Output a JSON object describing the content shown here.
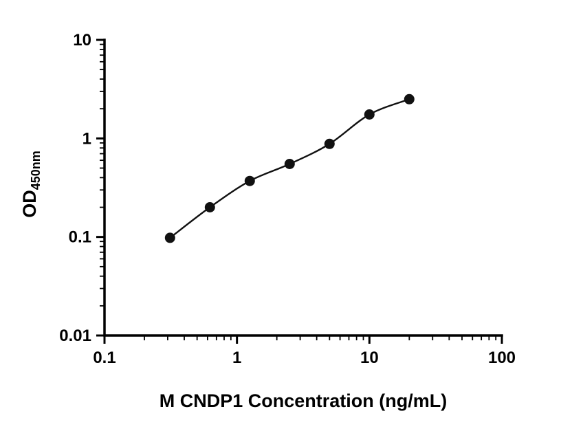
{
  "chart_data": {
    "type": "scatter",
    "title": "",
    "xlabel": "M CNDP1 Concentration (ng/mL)",
    "ylabel": "OD450nm",
    "ylabel_main": "OD",
    "ylabel_sub": "450nm",
    "xscale": "log",
    "yscale": "log",
    "xlim": [
      0.1,
      100
    ],
    "ylim": [
      0.01,
      10
    ],
    "x_tick_values": [
      0.1,
      1,
      10,
      100
    ],
    "x_tick_labels": [
      "0.1",
      "1",
      "10",
      "100"
    ],
    "y_tick_values": [
      0.01,
      0.1,
      1,
      10
    ],
    "y_tick_labels": [
      "0.01",
      "0.1",
      "1",
      "10"
    ],
    "x": [
      0.3125,
      0.625,
      1.25,
      2.5,
      5,
      10,
      20
    ],
    "y": [
      0.098,
      0.2,
      0.37,
      0.55,
      0.88,
      1.75,
      2.5
    ],
    "series_name": "standard-curve",
    "marker": "filled-circle",
    "fit": "smooth-curve-through-points",
    "grid": false,
    "legend": "none",
    "marker_color": "#111111",
    "line_color": "#111111",
    "axis_color": "#000000",
    "background": "#ffffff"
  }
}
